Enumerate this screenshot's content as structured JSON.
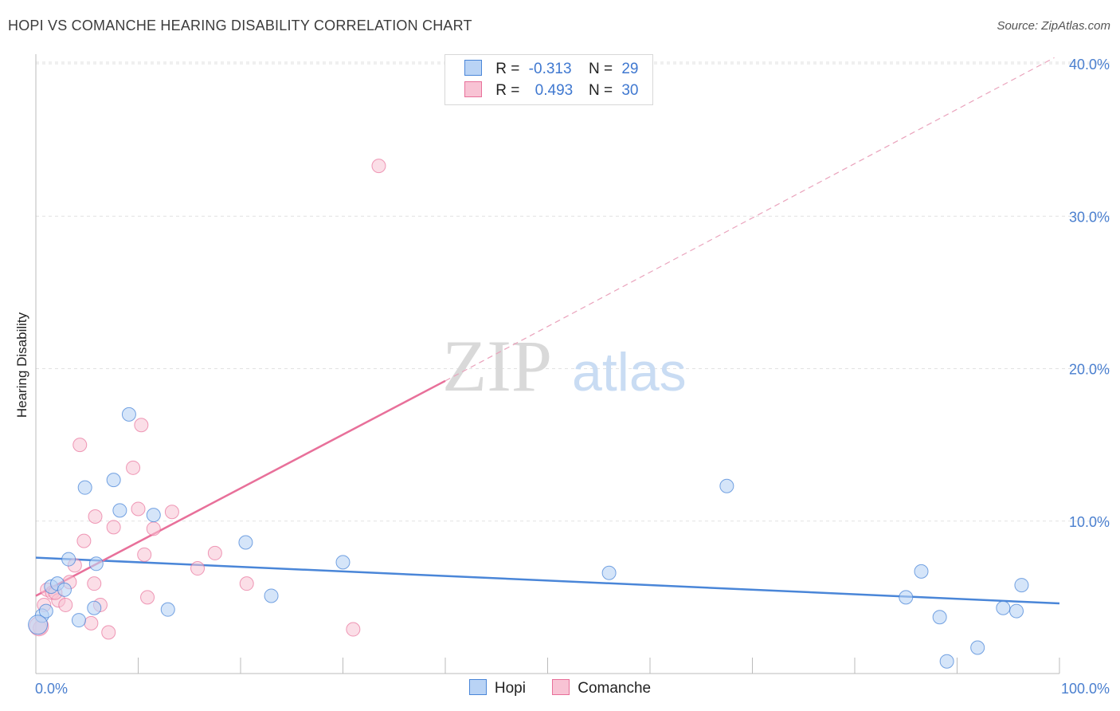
{
  "header": {
    "title": "HOPI VS COMANCHE HEARING DISABILITY CORRELATION CHART",
    "source": "Source: ZipAtlas.com"
  },
  "watermark": {
    "zip": "ZIP",
    "atlas": "atlas"
  },
  "legend": {
    "hopi": {
      "r_label": "R =",
      "r_value": "-0.313",
      "n_label": "N =",
      "n_value": "29"
    },
    "comanche": {
      "r_label": "R =",
      "r_value": "0.493",
      "n_label": "N =",
      "n_value": "30"
    }
  },
  "bottom_legend": {
    "hopi": "Hopi",
    "comanche": "Comanche"
  },
  "colors": {
    "hopi": "#4a86d8",
    "hopi_fill": "#b9d3f5",
    "comanche": "#e8709a",
    "comanche_fill": "#f8c3d4",
    "tick": "#4a7fcf"
  },
  "chart_data": {
    "type": "scatter",
    "ylabel": "Hearing Disability",
    "xlim": [
      0,
      100
    ],
    "ylim": [
      0,
      40
    ],
    "x_ticks": [
      "0.0%",
      "100.0%"
    ],
    "y_ticks": [
      {
        "v": 10,
        "label": "10.0%"
      },
      {
        "v": 20,
        "label": "20.0%"
      },
      {
        "v": 30,
        "label": "30.0%"
      },
      {
        "v": 40,
        "label": "40.0%"
      }
    ],
    "series": [
      {
        "name": "Hopi",
        "points": [
          [
            0.6,
            3.8
          ],
          [
            1.0,
            4.1
          ],
          [
            1.5,
            5.7
          ],
          [
            2.1,
            5.9
          ],
          [
            2.8,
            5.5
          ],
          [
            3.2,
            7.5
          ],
          [
            4.2,
            3.5
          ],
          [
            4.8,
            12.2
          ],
          [
            5.7,
            4.3
          ],
          [
            5.9,
            7.2
          ],
          [
            7.6,
            12.7
          ],
          [
            8.2,
            10.7
          ],
          [
            9.1,
            17.0
          ],
          [
            11.5,
            10.4
          ],
          [
            12.9,
            4.2
          ],
          [
            20.5,
            8.6
          ],
          [
            23.0,
            5.1
          ],
          [
            30.0,
            7.3
          ],
          [
            56.0,
            6.6
          ],
          [
            67.5,
            12.3
          ],
          [
            85.0,
            5.0
          ],
          [
            86.5,
            6.7
          ],
          [
            88.3,
            3.7
          ],
          [
            89.0,
            0.8
          ],
          [
            92.0,
            1.7
          ],
          [
            94.5,
            4.3
          ],
          [
            95.8,
            4.1
          ],
          [
            96.3,
            5.8
          ],
          [
            0.2,
            3.2
          ]
        ],
        "trend": {
          "x1": 0,
          "y1": 7.6,
          "x2": 100,
          "y2": 4.6
        }
      },
      {
        "name": "Comanche",
        "points": [
          [
            0.4,
            3.0
          ],
          [
            0.8,
            4.5
          ],
          [
            1.1,
            5.5
          ],
          [
            1.6,
            5.3
          ],
          [
            2.2,
            4.8
          ],
          [
            2.9,
            4.5
          ],
          [
            3.3,
            6.0
          ],
          [
            3.8,
            7.1
          ],
          [
            4.3,
            15.0
          ],
          [
            4.7,
            8.7
          ],
          [
            5.4,
            3.3
          ],
          [
            5.8,
            10.3
          ],
          [
            6.3,
            4.5
          ],
          [
            7.1,
            2.7
          ],
          [
            7.6,
            9.6
          ],
          [
            9.5,
            13.5
          ],
          [
            10.0,
            10.8
          ],
          [
            10.3,
            16.3
          ],
          [
            10.6,
            7.8
          ],
          [
            10.9,
            5.0
          ],
          [
            11.5,
            9.5
          ],
          [
            13.3,
            10.6
          ],
          [
            15.8,
            6.9
          ],
          [
            17.5,
            7.9
          ],
          [
            20.6,
            5.9
          ],
          [
            31.0,
            2.9
          ],
          [
            33.5,
            33.3
          ],
          [
            5.7,
            5.9
          ],
          [
            1.9,
            5.3
          ],
          [
            0.3,
            3.1
          ]
        ],
        "trend": {
          "x1": 0,
          "y1": 5.1,
          "x2": 40,
          "y2": 19.2
        },
        "trend_ext": {
          "x1": 40,
          "y1": 19.2,
          "x2": 99.5,
          "y2": 40.4
        }
      }
    ]
  }
}
